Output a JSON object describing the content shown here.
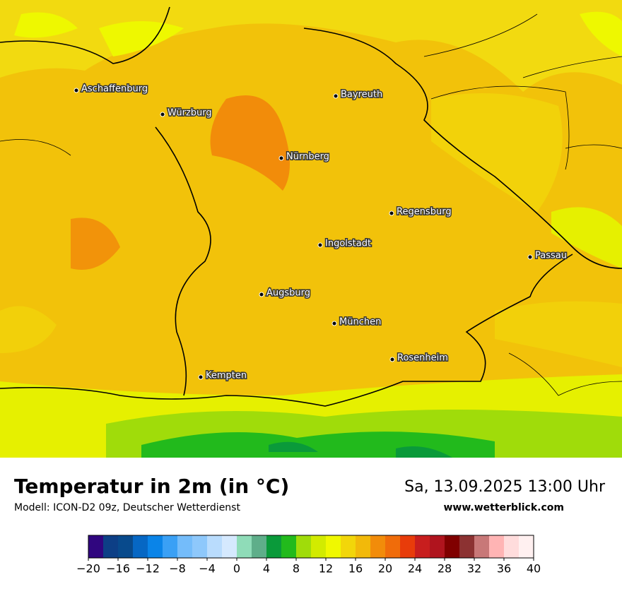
{
  "header": {
    "title": "Temperatur in 2m (in °C)",
    "subtitle": "Modell: ICON-D2 09z, Deutscher Wetterdienst",
    "datetime": "Sa, 13.09.2025 13:00 Uhr",
    "website": "www.wetterblick.com"
  },
  "cities": [
    "Aschaffenburg",
    "Würzburg",
    "Bayreuth",
    "Nürnberg",
    "Regensburg",
    "Ingolstadt",
    "Passau",
    "Augsburg",
    "München",
    "Rosenheim",
    "Kempten"
  ],
  "colorbar": {
    "colors": [
      "#30067f",
      "#0d3f86",
      "#084a8c",
      "#0667c4",
      "#0a84e8",
      "#3aa0f5",
      "#74bcfa",
      "#8ec8fb",
      "#b9dcfd",
      "#d5e9fe",
      "#8fdcb8",
      "#5fae8a",
      "#0a9a3a",
      "#22ba1c",
      "#a0dc0a",
      "#d2eb00",
      "#f0f800",
      "#f2d60a",
      "#f2b90a",
      "#f28c0a",
      "#f06c0a",
      "#e83c0a",
      "#c81e1e",
      "#b0141e",
      "#800000",
      "#8c3232",
      "#c87878",
      "#ffb4b4",
      "#ffdcdc",
      "#fff0f0"
    ],
    "lim": [
      -20,
      40
    ],
    "ticks": [
      {
        "value": -20,
        "label": "−20"
      },
      {
        "value": -16,
        "label": "−16"
      },
      {
        "value": -12,
        "label": "−12"
      },
      {
        "value": -8,
        "label": "−8"
      },
      {
        "value": -4,
        "label": "−4"
      },
      0,
      4,
      8,
      12,
      16,
      20,
      24,
      28,
      32,
      36,
      40
    ]
  }
}
